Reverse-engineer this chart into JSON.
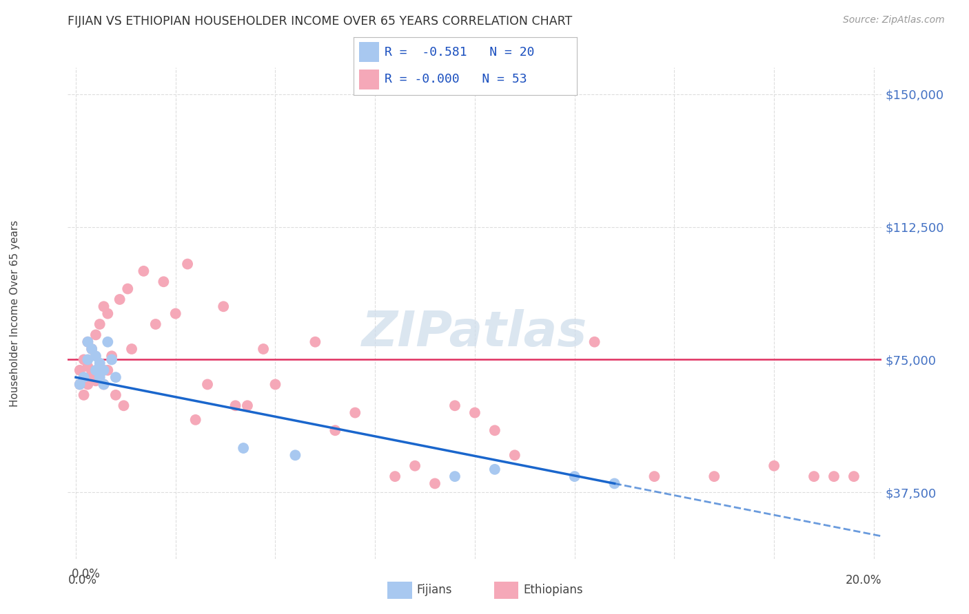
{
  "title": "FIJIAN VS ETHIOPIAN HOUSEHOLDER INCOME OVER 65 YEARS CORRELATION CHART",
  "source": "Source: ZipAtlas.com",
  "ylabel": "Householder Income Over 65 years",
  "right_ytick_labels": [
    "$37,500",
    "$75,000",
    "$112,500",
    "$150,000"
  ],
  "right_ytick_values": [
    37500,
    75000,
    112500,
    150000
  ],
  "ylim": [
    18750,
    157500
  ],
  "xlim": [
    -0.002,
    0.202
  ],
  "legend_fijian_r": "R =  -0.581",
  "legend_fijian_n": "N = 20",
  "legend_ethiopian_r": "R = -0.000",
  "legend_ethiopian_n": "N = 53",
  "fijian_color": "#a8c8f0",
  "ethiopian_color": "#f5a8b8",
  "trendline_fijian_color": "#1a66cc",
  "mean_line_color": "#e03060",
  "mean_line_value": 75000,
  "watermark_color": "#cddceb",
  "background_color": "#ffffff",
  "grid_color": "#dddddd",
  "fijian_x": [
    0.001,
    0.002,
    0.003,
    0.003,
    0.004,
    0.005,
    0.005,
    0.006,
    0.006,
    0.007,
    0.007,
    0.008,
    0.009,
    0.01,
    0.042,
    0.055,
    0.095,
    0.105,
    0.125,
    0.135
  ],
  "fijian_y": [
    68000,
    70000,
    75000,
    80000,
    78000,
    72000,
    76000,
    74000,
    70000,
    68000,
    72000,
    80000,
    75000,
    70000,
    50000,
    48000,
    42000,
    44000,
    42000,
    40000
  ],
  "ethiopian_x": [
    0.001,
    0.001,
    0.002,
    0.002,
    0.003,
    0.003,
    0.003,
    0.004,
    0.004,
    0.005,
    0.005,
    0.006,
    0.006,
    0.007,
    0.007,
    0.007,
    0.008,
    0.008,
    0.009,
    0.01,
    0.011,
    0.012,
    0.013,
    0.014,
    0.017,
    0.02,
    0.022,
    0.025,
    0.028,
    0.03,
    0.033,
    0.037,
    0.04,
    0.043,
    0.047,
    0.05,
    0.06,
    0.065,
    0.07,
    0.08,
    0.085,
    0.09,
    0.095,
    0.1,
    0.105,
    0.11,
    0.13,
    0.145,
    0.16,
    0.175,
    0.185,
    0.19,
    0.195
  ],
  "ethiopian_y": [
    72000,
    68000,
    75000,
    65000,
    80000,
    73000,
    68000,
    78000,
    71000,
    82000,
    69000,
    85000,
    73000,
    90000,
    72000,
    68000,
    88000,
    72000,
    76000,
    65000,
    92000,
    62000,
    95000,
    78000,
    100000,
    85000,
    97000,
    88000,
    102000,
    58000,
    68000,
    90000,
    62000,
    62000,
    78000,
    68000,
    80000,
    55000,
    60000,
    42000,
    45000,
    40000,
    62000,
    60000,
    55000,
    48000,
    80000,
    42000,
    42000,
    45000,
    42000,
    42000,
    42000
  ]
}
